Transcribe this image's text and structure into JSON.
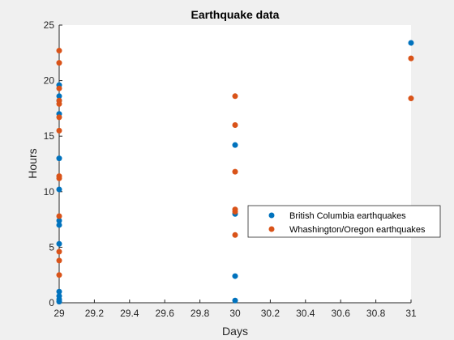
{
  "chart_data": {
    "type": "scatter",
    "title": "Earthquake data",
    "xlabel": "Days",
    "ylabel": "Hours",
    "xlim": [
      29,
      31
    ],
    "ylim": [
      0,
      25
    ],
    "xticks": [
      "29",
      "29.2",
      "29.4",
      "29.6",
      "29.8",
      "30",
      "30.2",
      "30.4",
      "30.6",
      "30.8",
      "31"
    ],
    "yticks": [
      "0",
      "5",
      "10",
      "15",
      "20",
      "25"
    ],
    "grid": false,
    "legend_position": "east",
    "series": [
      {
        "name": "British Columbia earthquakes",
        "color": "#0072BD",
        "points": [
          [
            29,
            0.1
          ],
          [
            29,
            0.3
          ],
          [
            29,
            0.6
          ],
          [
            29,
            1.0
          ],
          [
            29,
            5.3
          ],
          [
            29,
            7.0
          ],
          [
            29,
            7.4
          ],
          [
            29,
            10.2
          ],
          [
            29,
            13.0
          ],
          [
            29,
            17.0
          ],
          [
            29,
            18.2
          ],
          [
            29,
            18.6
          ],
          [
            29,
            19.6
          ],
          [
            30,
            0.2
          ],
          [
            30,
            2.4
          ],
          [
            30,
            8.0
          ],
          [
            30,
            14.2
          ],
          [
            31,
            23.4
          ]
        ]
      },
      {
        "name": "Whashington/Oregon earthquakes",
        "color": "#D95319",
        "points": [
          [
            29,
            2.5
          ],
          [
            29,
            3.8
          ],
          [
            29,
            4.6
          ],
          [
            29,
            7.8
          ],
          [
            29,
            11.2
          ],
          [
            29,
            11.4
          ],
          [
            29,
            15.5
          ],
          [
            29,
            16.7
          ],
          [
            29,
            17.9
          ],
          [
            29,
            18.2
          ],
          [
            29,
            19.3
          ],
          [
            29,
            21.6
          ],
          [
            29,
            22.7
          ],
          [
            30,
            6.1
          ],
          [
            30,
            8.2
          ],
          [
            30,
            8.4
          ],
          [
            30,
            11.8
          ],
          [
            30,
            16.0
          ],
          [
            30,
            18.6
          ],
          [
            31,
            18.4
          ],
          [
            31,
            22.0
          ]
        ]
      }
    ]
  }
}
